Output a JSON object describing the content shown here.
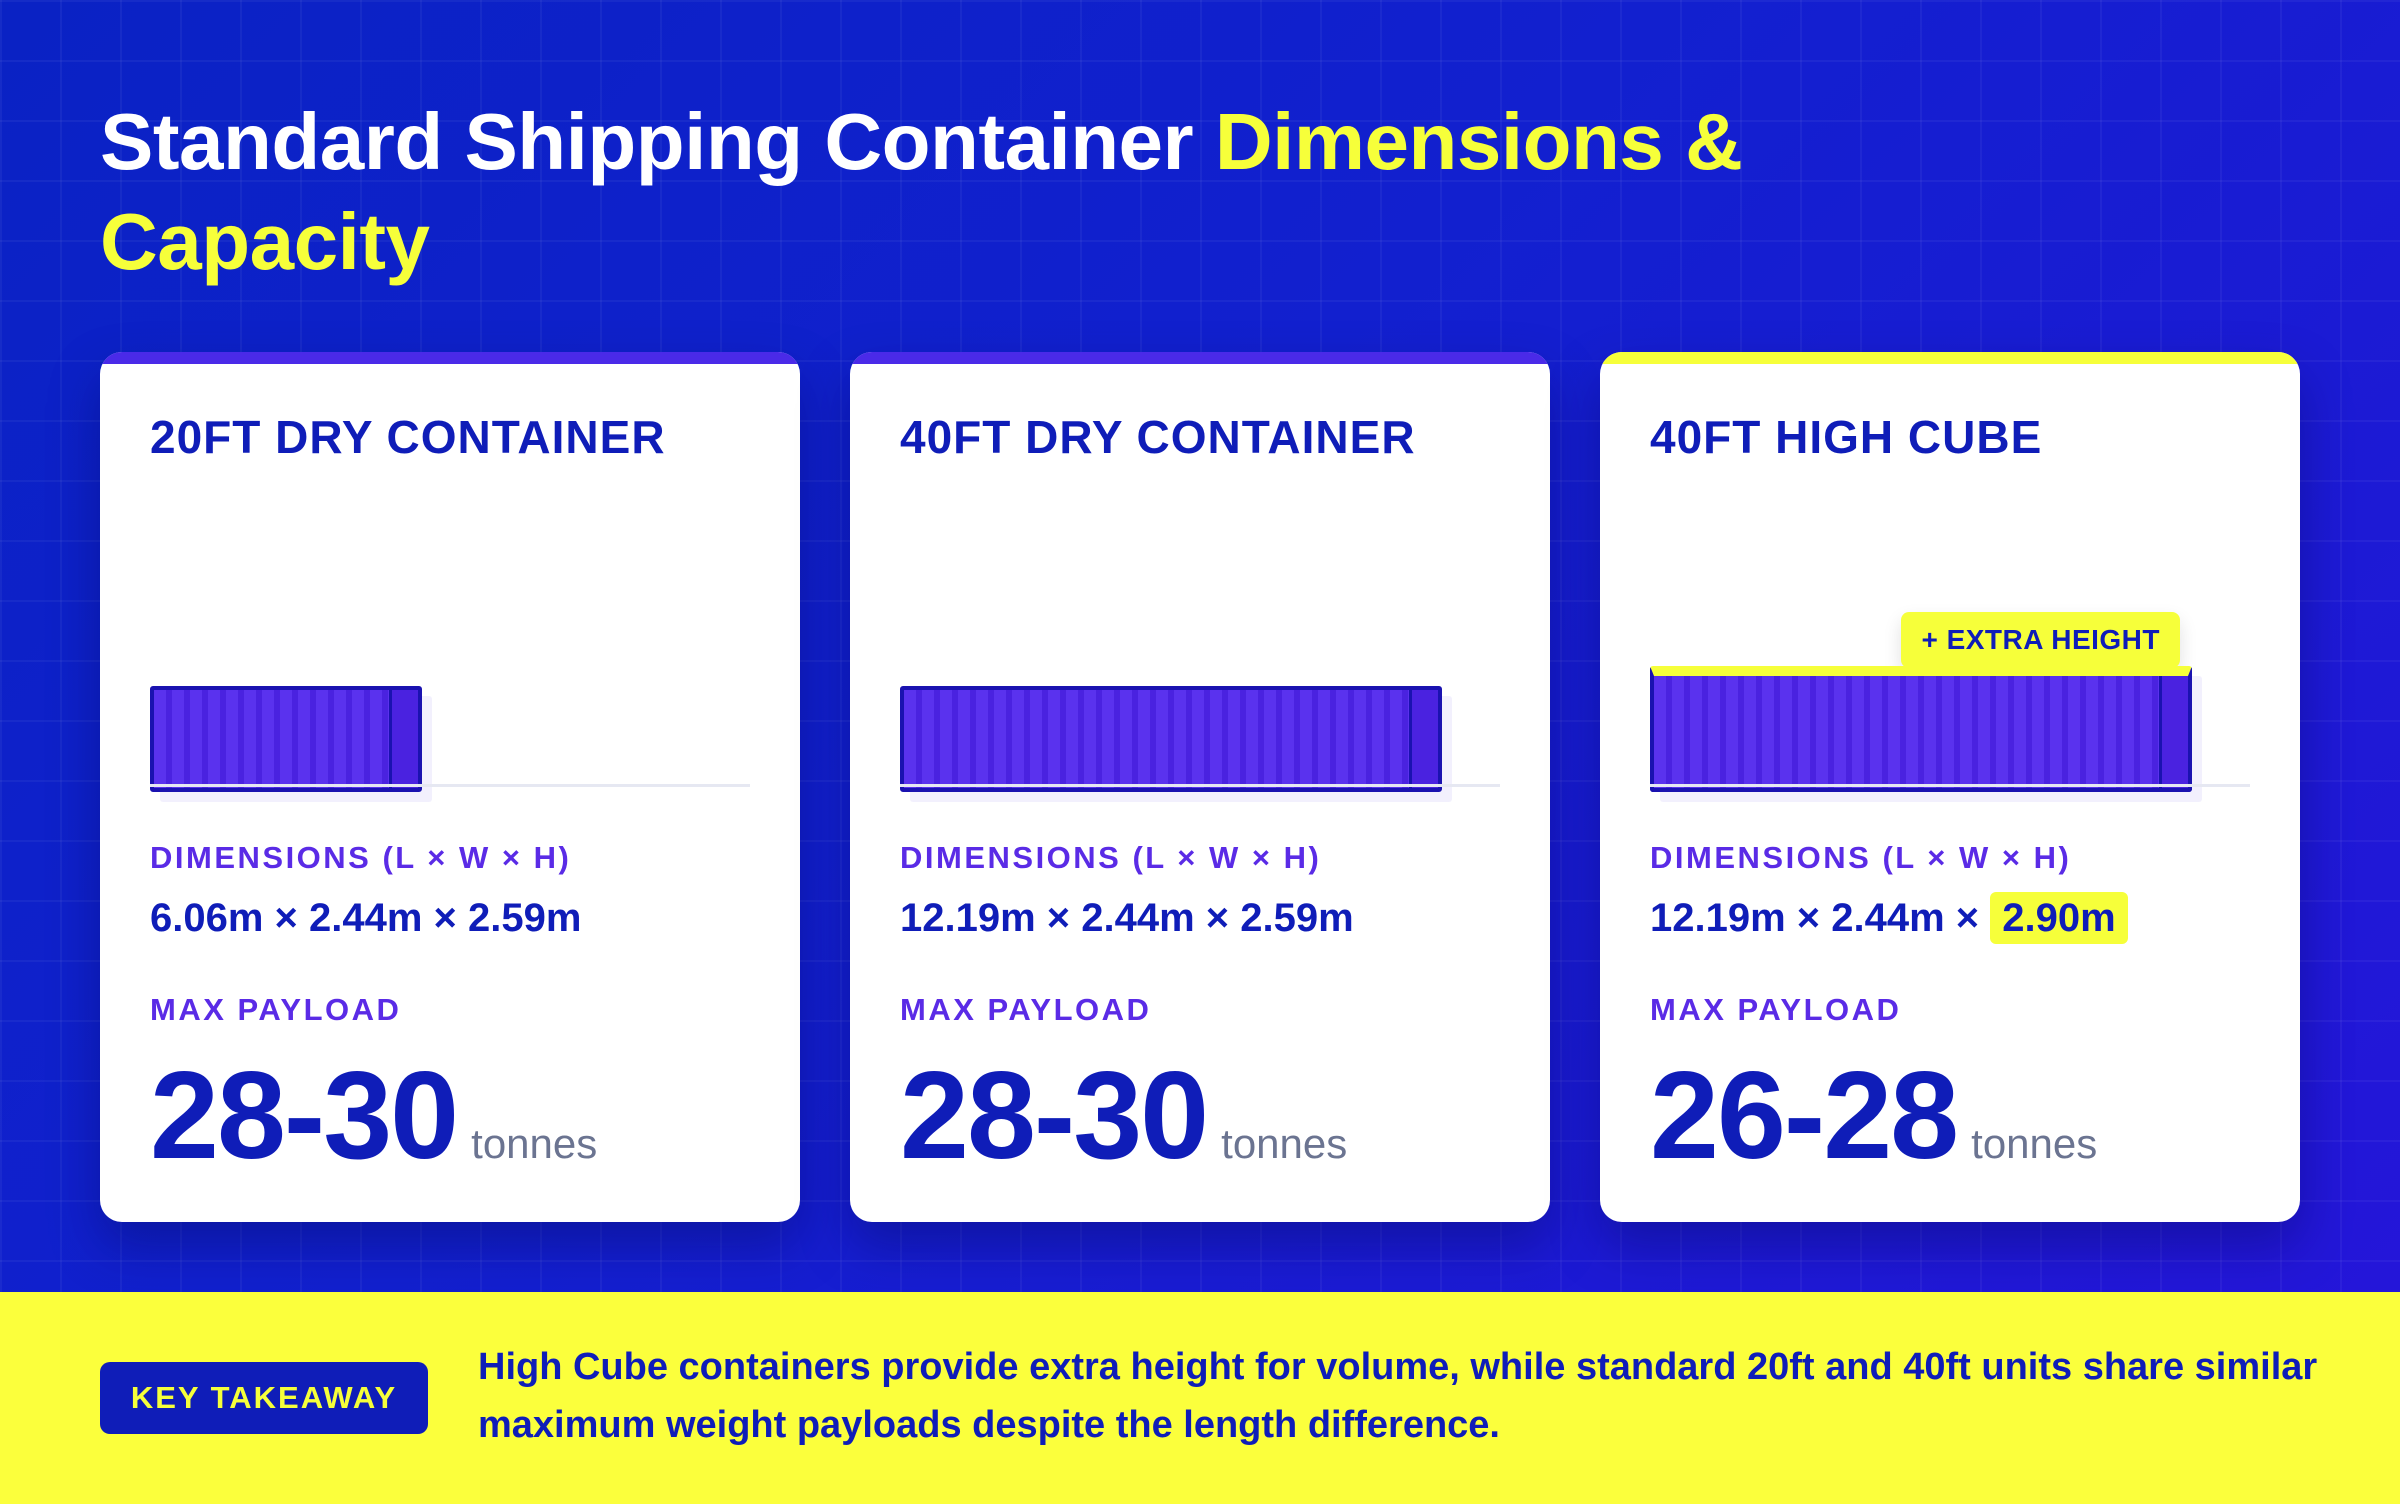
{
  "title": {
    "main": "Standard Shipping Container ",
    "accent": "Dimensions & Capacity"
  },
  "colors": {
    "background": "#1220cf",
    "primary": "#0f1db8",
    "accent_yellow": "#f6ff3a",
    "purple": "#5a2be6",
    "unit_gray": "#6b7491"
  },
  "cards": [
    {
      "title": "20FT DRY CONTAINER",
      "dimensions_label": "DIMENSIONS (L × W × H)",
      "dimensions": "6.06m × 2.44m × 2.59m",
      "dimensions_highlight": "",
      "payload_label": "MAX PAYLOAD",
      "payload": "28-30",
      "unit": "tonnes"
    },
    {
      "title": "40FT DRY CONTAINER",
      "dimensions_label": "DIMENSIONS (L × W × H)",
      "dimensions": "12.19m × 2.44m × 2.59m",
      "dimensions_highlight": "",
      "payload_label": "MAX PAYLOAD",
      "payload": "28-30",
      "unit": "tonnes"
    },
    {
      "title": "40FT HIGH CUBE",
      "badge": "+ EXTRA HEIGHT",
      "dimensions_label": "DIMENSIONS (L × W × H)",
      "dimensions": "12.19m × 2.44m × ",
      "dimensions_highlight": "2.90m",
      "payload_label": "MAX PAYLOAD",
      "payload": "26-28",
      "unit": "tonnes"
    }
  ],
  "footer": {
    "key_label": "KEY TAKEAWAY",
    "text": "High Cube containers provide extra height for volume, while standard 20ft and 40ft units share similar maximum weight payloads despite the length difference."
  }
}
